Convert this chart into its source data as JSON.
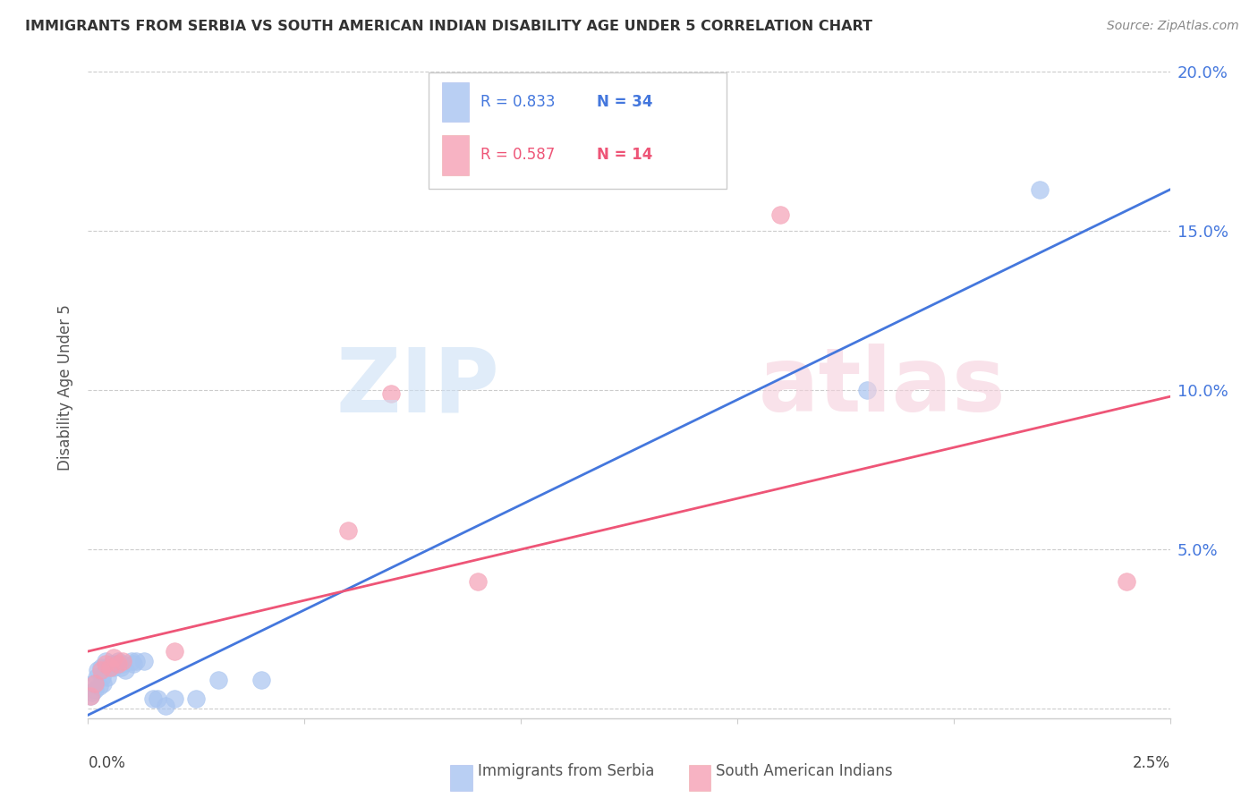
{
  "title": "IMMIGRANTS FROM SERBIA VS SOUTH AMERICAN INDIAN DISABILITY AGE UNDER 5 CORRELATION CHART",
  "source": "Source: ZipAtlas.com",
  "ylabel": "Disability Age Under 5",
  "serbia_R": 0.833,
  "serbia_N": 34,
  "sai_R": 0.587,
  "sai_N": 14,
  "serbia_color": "#a8c4f0",
  "sai_color": "#f5a0b5",
  "serbia_line_color": "#4477dd",
  "sai_line_color": "#ee5577",
  "x_range": [
    0.0,
    0.025
  ],
  "y_range": [
    -0.003,
    0.205
  ],
  "serbia_x": [
    5e-05,
    0.0001,
    0.00012,
    0.00015,
    0.0002,
    0.00022,
    0.00025,
    0.0003,
    0.00032,
    0.00035,
    0.0004,
    0.00042,
    0.00045,
    0.0005,
    0.00055,
    0.0006,
    0.00065,
    0.0007,
    0.00075,
    0.0008,
    0.00085,
    0.001,
    0.00105,
    0.0011,
    0.0013,
    0.0015,
    0.0016,
    0.0018,
    0.002,
    0.0025,
    0.003,
    0.004,
    0.018,
    0.022
  ],
  "serbia_y": [
    0.004,
    0.005,
    0.008,
    0.006,
    0.01,
    0.012,
    0.007,
    0.013,
    0.01,
    0.008,
    0.015,
    0.013,
    0.01,
    0.013,
    0.014,
    0.013,
    0.014,
    0.015,
    0.013,
    0.014,
    0.012,
    0.015,
    0.014,
    0.015,
    0.015,
    0.003,
    0.003,
    0.001,
    0.003,
    0.003,
    0.009,
    0.009,
    0.1,
    0.163
  ],
  "sai_x": [
    5e-05,
    0.00015,
    0.0003,
    0.0004,
    0.0005,
    0.0006,
    0.0007,
    0.0008,
    0.002,
    0.006,
    0.007,
    0.009,
    0.016,
    0.024
  ],
  "sai_y": [
    0.004,
    0.008,
    0.012,
    0.014,
    0.013,
    0.016,
    0.014,
    0.015,
    0.018,
    0.056,
    0.099,
    0.04,
    0.155,
    0.04
  ],
  "serbia_line_x0": 0.0,
  "serbia_line_y0": -0.002,
  "serbia_line_x1": 0.025,
  "serbia_line_y1": 0.163,
  "sai_line_x0": 0.0,
  "sai_line_y0": 0.018,
  "sai_line_x1": 0.025,
  "sai_line_y1": 0.098
}
